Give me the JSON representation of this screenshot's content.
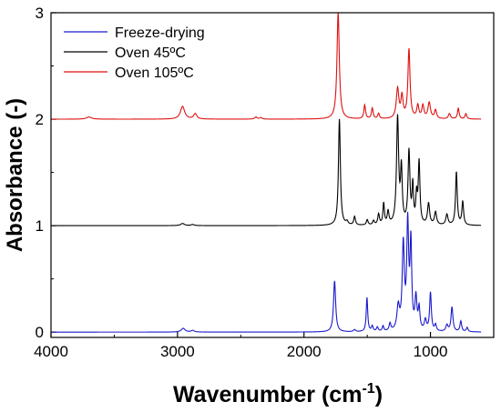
{
  "chart_data": {
    "type": "line",
    "xlabel": "Wavenumber (cm",
    "xlabel_sup": "-1",
    "xlabel_tail": ")",
    "ylabel": "Absorbance (-)",
    "xlim": [
      4000,
      500
    ],
    "ylim": [
      -0.05,
      3.0
    ],
    "x_ticks": [
      4000,
      3000,
      2000,
      1000
    ],
    "x_tick_labels": [
      "4000",
      "3000",
      "2000",
      "1000"
    ],
    "y_ticks": [
      0,
      1,
      2,
      3
    ],
    "y_tick_labels": [
      "0",
      "1",
      "2",
      "3"
    ],
    "grid": false,
    "legend_position": "top-left",
    "series": [
      {
        "name": "Freeze-drying",
        "color": "#1a1acc",
        "baseline": 0.0,
        "x_start": 4000,
        "x_end": 600,
        "peaks": [
          {
            "x": 2955,
            "h": 0.035,
            "w": 18
          },
          {
            "x": 2880,
            "h": 0.015,
            "w": 15
          },
          {
            "x": 1758,
            "h": 0.48,
            "w": 10
          },
          {
            "x": 1600,
            "h": 0.02,
            "w": 10
          },
          {
            "x": 1502,
            "h": 0.32,
            "w": 7
          },
          {
            "x": 1460,
            "h": 0.05,
            "w": 8
          },
          {
            "x": 1420,
            "h": 0.04,
            "w": 8
          },
          {
            "x": 1375,
            "h": 0.05,
            "w": 7
          },
          {
            "x": 1320,
            "h": 0.07,
            "w": 8
          },
          {
            "x": 1255,
            "h": 0.22,
            "w": 12
          },
          {
            "x": 1215,
            "h": 0.8,
            "w": 10
          },
          {
            "x": 1180,
            "h": 0.98,
            "w": 9
          },
          {
            "x": 1155,
            "h": 0.8,
            "w": 8
          },
          {
            "x": 1115,
            "h": 0.3,
            "w": 9
          },
          {
            "x": 1090,
            "h": 0.2,
            "w": 8
          },
          {
            "x": 1040,
            "h": 0.1,
            "w": 10
          },
          {
            "x": 1000,
            "h": 0.36,
            "w": 8
          },
          {
            "x": 960,
            "h": 0.06,
            "w": 8
          },
          {
            "x": 870,
            "h": 0.06,
            "w": 10
          },
          {
            "x": 830,
            "h": 0.23,
            "w": 9
          },
          {
            "x": 760,
            "h": 0.1,
            "w": 8
          },
          {
            "x": 710,
            "h": 0.04,
            "w": 8
          }
        ]
      },
      {
        "name": "Oven 45ºC",
        "color": "#000000",
        "baseline": 1.0,
        "x_start": 4000,
        "x_end": 600,
        "peaks": [
          {
            "x": 2960,
            "h": 0.02,
            "w": 18
          },
          {
            "x": 2880,
            "h": 0.01,
            "w": 15
          },
          {
            "x": 1720,
            "h": 1.0,
            "w": 9
          },
          {
            "x": 1660,
            "h": 0.03,
            "w": 10
          },
          {
            "x": 1600,
            "h": 0.08,
            "w": 8
          },
          {
            "x": 1500,
            "h": 0.05,
            "w": 8
          },
          {
            "x": 1450,
            "h": 0.04,
            "w": 8
          },
          {
            "x": 1410,
            "h": 0.1,
            "w": 8
          },
          {
            "x": 1370,
            "h": 0.2,
            "w": 7
          },
          {
            "x": 1335,
            "h": 0.12,
            "w": 8
          },
          {
            "x": 1260,
            "h": 1.0,
            "w": 10
          },
          {
            "x": 1230,
            "h": 0.5,
            "w": 8
          },
          {
            "x": 1170,
            "h": 0.68,
            "w": 9
          },
          {
            "x": 1140,
            "h": 0.35,
            "w": 7
          },
          {
            "x": 1110,
            "h": 0.25,
            "w": 7
          },
          {
            "x": 1090,
            "h": 0.58,
            "w": 8
          },
          {
            "x": 1015,
            "h": 0.2,
            "w": 10
          },
          {
            "x": 960,
            "h": 0.12,
            "w": 10
          },
          {
            "x": 870,
            "h": 0.1,
            "w": 10
          },
          {
            "x": 795,
            "h": 0.5,
            "w": 8
          },
          {
            "x": 745,
            "h": 0.22,
            "w": 8
          }
        ]
      },
      {
        "name": "Oven 105ºC",
        "color": "#dd1111",
        "baseline": 2.0,
        "x_start": 4000,
        "x_end": 600,
        "peaks": [
          {
            "x": 3700,
            "h": 0.02,
            "w": 25
          },
          {
            "x": 2960,
            "h": 0.12,
            "w": 20
          },
          {
            "x": 2860,
            "h": 0.05,
            "w": 15
          },
          {
            "x": 2380,
            "h": 0.02,
            "w": 12
          },
          {
            "x": 2340,
            "h": 0.015,
            "w": 10
          },
          {
            "x": 1730,
            "h": 1.0,
            "w": 11
          },
          {
            "x": 1520,
            "h": 0.13,
            "w": 8
          },
          {
            "x": 1460,
            "h": 0.1,
            "w": 8
          },
          {
            "x": 1410,
            "h": 0.05,
            "w": 8
          },
          {
            "x": 1260,
            "h": 0.28,
            "w": 12
          },
          {
            "x": 1225,
            "h": 0.2,
            "w": 10
          },
          {
            "x": 1170,
            "h": 0.65,
            "w": 10
          },
          {
            "x": 1100,
            "h": 0.12,
            "w": 10
          },
          {
            "x": 1060,
            "h": 0.12,
            "w": 10
          },
          {
            "x": 1010,
            "h": 0.15,
            "w": 12
          },
          {
            "x": 960,
            "h": 0.08,
            "w": 10
          },
          {
            "x": 850,
            "h": 0.05,
            "w": 10
          },
          {
            "x": 780,
            "h": 0.1,
            "w": 8
          },
          {
            "x": 720,
            "h": 0.05,
            "w": 8
          }
        ]
      }
    ]
  }
}
